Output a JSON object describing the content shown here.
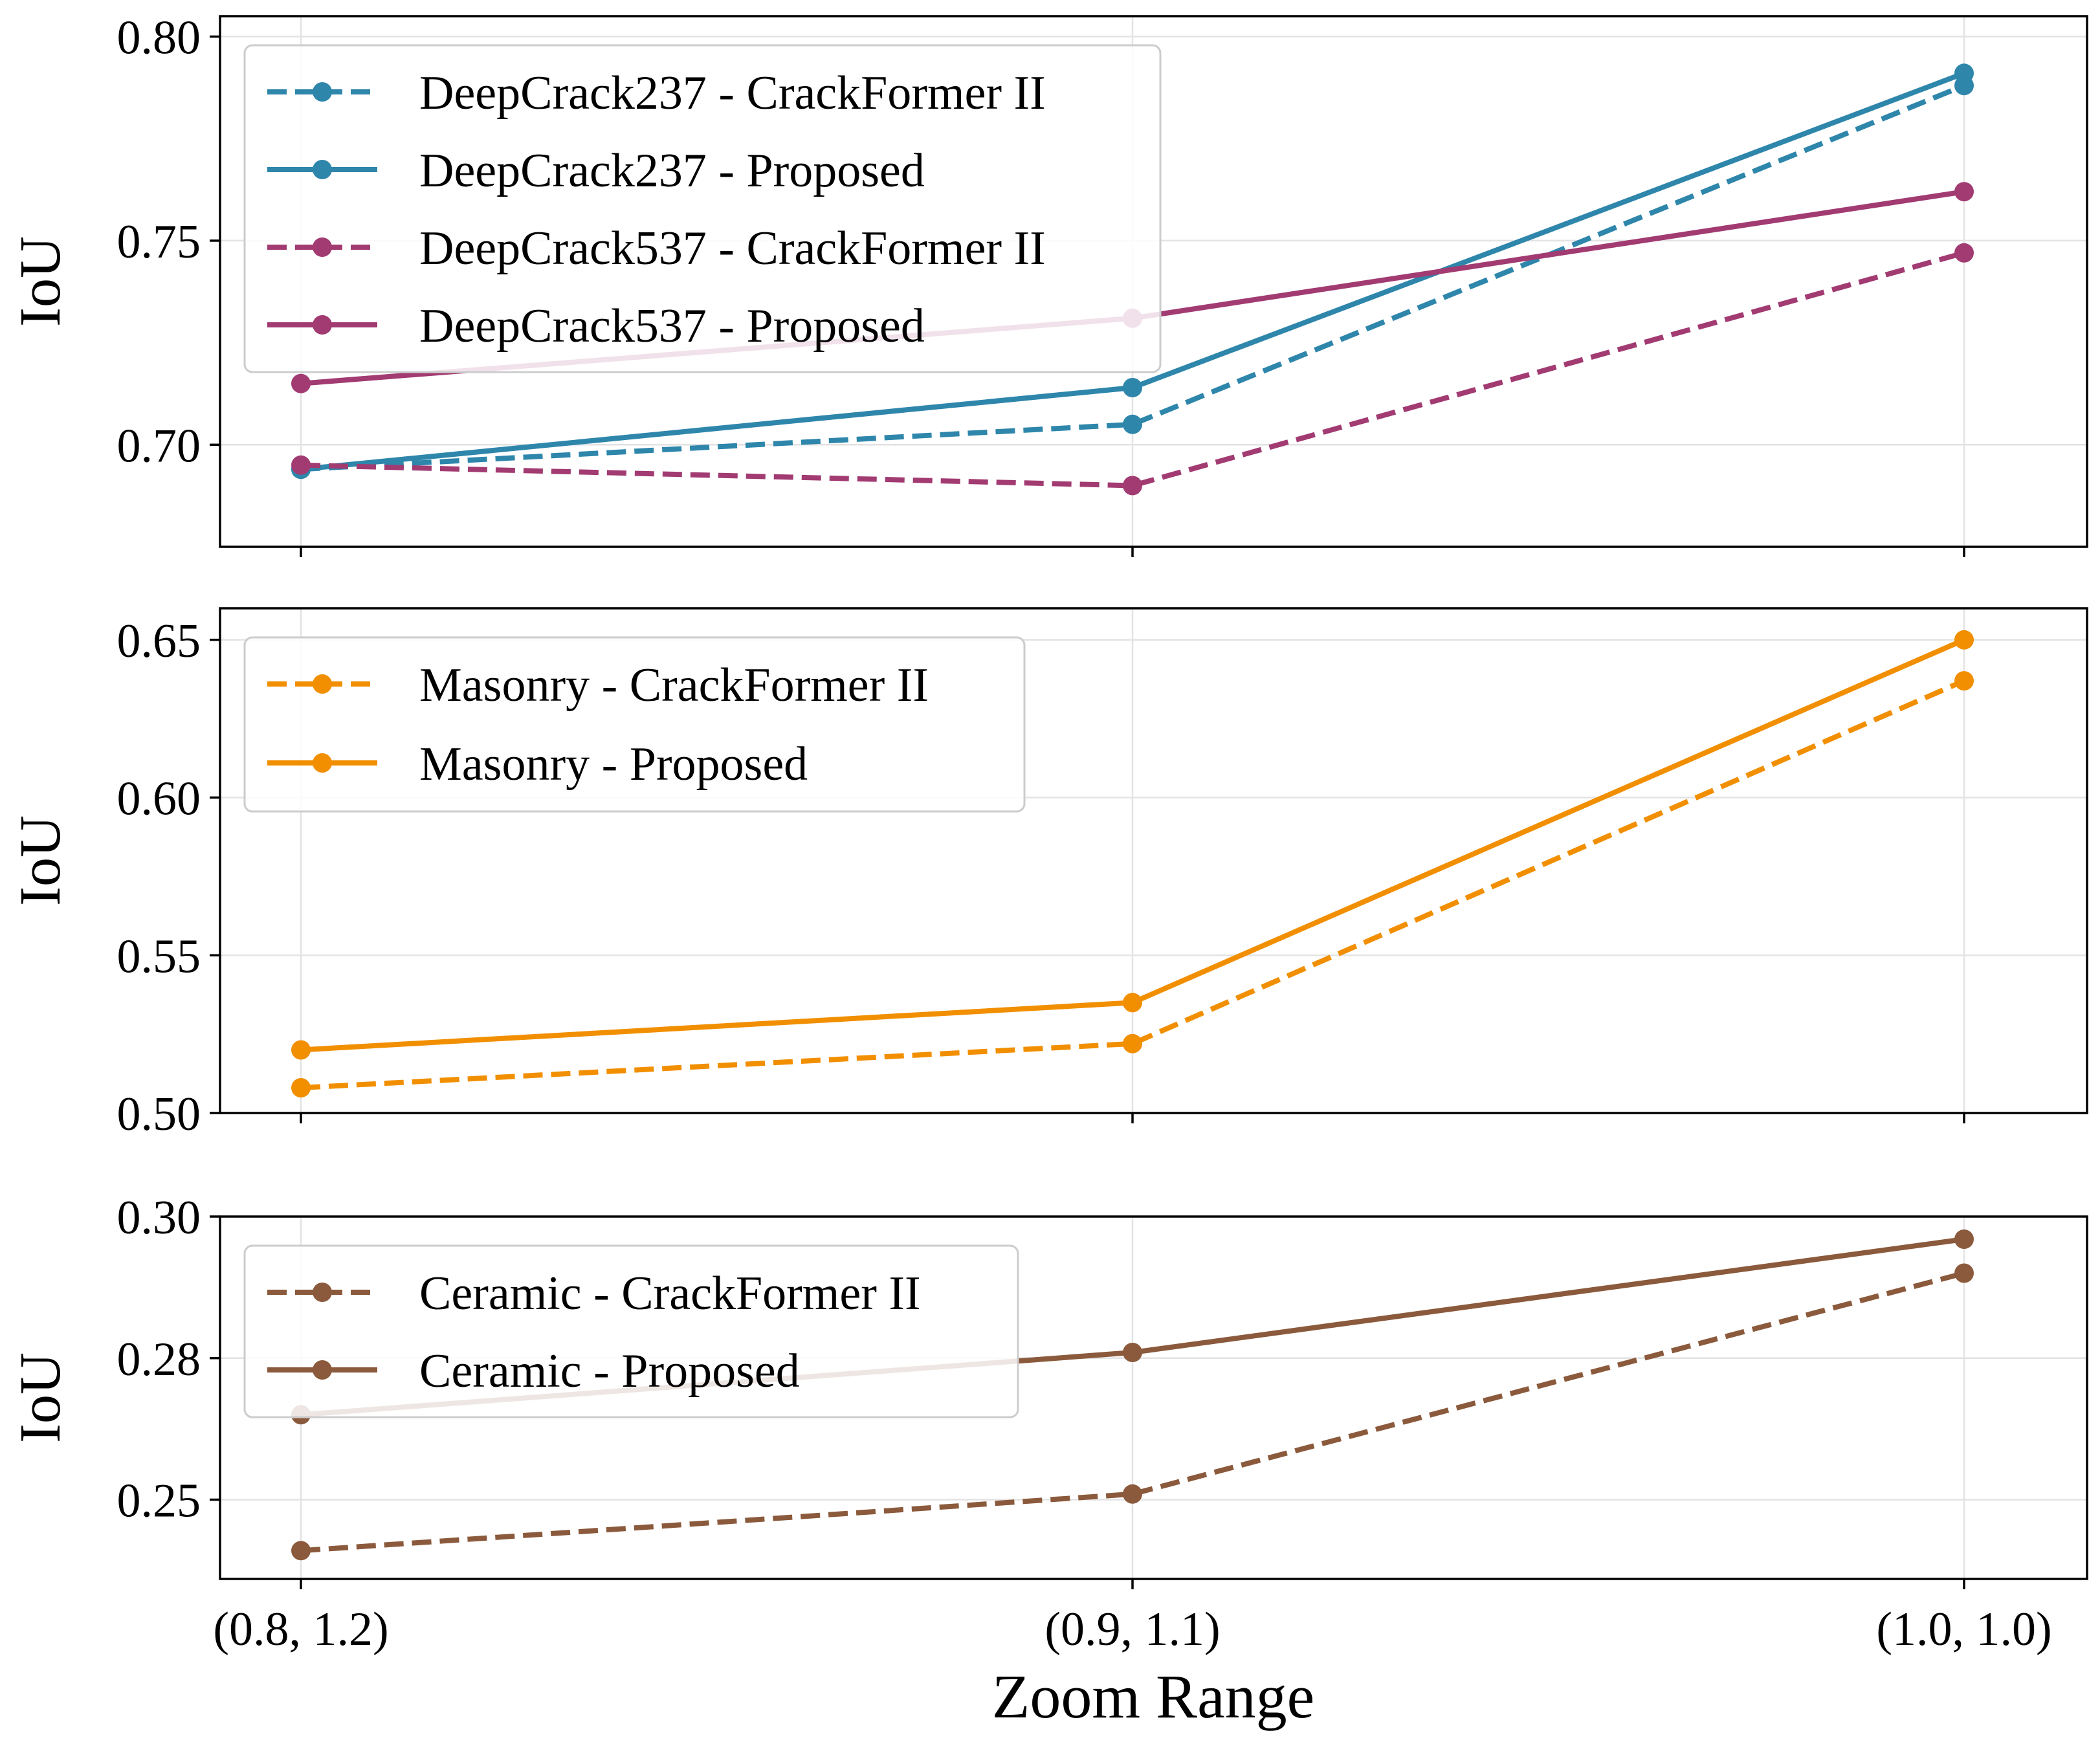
{
  "chart_data": {
    "type": "line",
    "categories": [
      "(0.8, 1.2)",
      "(0.9, 1.1)",
      "(1.0, 1.0)"
    ],
    "xlabel": "Zoom Range",
    "panels": [
      {
        "ylabel": "IoU",
        "ylim": [
          0.675,
          0.805
        ],
        "yticks": [
          0.7,
          0.75,
          0.8
        ],
        "ytick_labels": [
          "0.70",
          "0.75",
          "0.80"
        ],
        "grid": true,
        "legend_position": "upper-left",
        "series": [
          {
            "name": "DeepCrack237 - CrackFormer II",
            "color": "#2e86ab",
            "style": "dashed",
            "values": [
              0.694,
              0.705,
              0.788
            ]
          },
          {
            "name": "DeepCrack237 - Proposed",
            "color": "#2e86ab",
            "style": "solid",
            "values": [
              0.694,
              0.714,
              0.791
            ]
          },
          {
            "name": "DeepCrack537 - CrackFormer II",
            "color": "#a23b72",
            "style": "dashed",
            "values": [
              0.695,
              0.69,
              0.747
            ]
          },
          {
            "name": "DeepCrack537 - Proposed",
            "color": "#a23b72",
            "style": "solid",
            "values": [
              0.715,
              0.731,
              0.762
            ]
          }
        ]
      },
      {
        "ylabel": "IoU",
        "ylim": [
          0.5,
          0.66
        ],
        "yticks": [
          0.5,
          0.55,
          0.6,
          0.65
        ],
        "ytick_labels": [
          "0.50",
          "0.55",
          "0.60",
          "0.65"
        ],
        "grid": true,
        "legend_position": "upper-left",
        "series": [
          {
            "name": "Masonry - CrackFormer II",
            "color": "#f18f01",
            "style": "dashed",
            "values": [
              0.508,
              0.522,
              0.637
            ]
          },
          {
            "name": "Masonry - Proposed",
            "color": "#f18f01",
            "style": "solid",
            "values": [
              0.52,
              0.535,
              0.65
            ]
          }
        ]
      },
      {
        "ylabel": "IoU",
        "ylim": [
          0.236,
          0.3
        ],
        "yticks": [
          0.25,
          0.275,
          0.3
        ],
        "ytick_labels": [
          "0.25",
          "0.28",
          "0.30"
        ],
        "grid": true,
        "legend_position": "upper-left",
        "series": [
          {
            "name": "Ceramic - CrackFormer II",
            "color": "#8b5a3c",
            "style": "dashed",
            "values": [
              0.241,
              0.251,
              0.29
            ]
          },
          {
            "name": "Ceramic - Proposed",
            "color": "#8b5a3c",
            "style": "solid",
            "values": [
              0.265,
              0.276,
              0.296
            ]
          }
        ]
      }
    ]
  }
}
